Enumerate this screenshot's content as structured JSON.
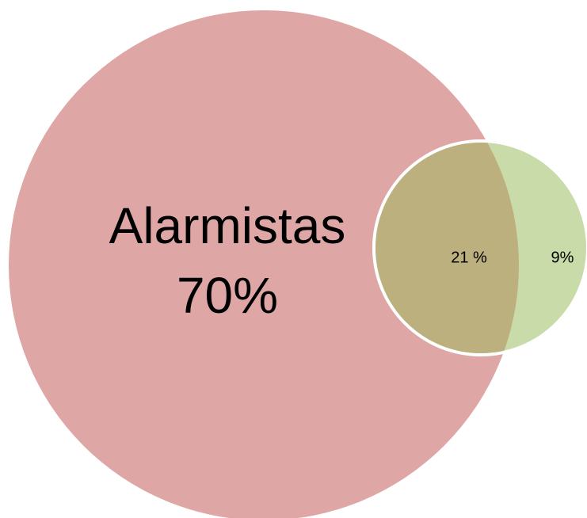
{
  "diagram": {
    "circles": [
      {
        "label": "Alarmistas",
        "share": "70%"
      }
    ],
    "overlap": {
      "share": "21 %"
    },
    "remainder": {
      "share": "9%"
    }
  }
}
